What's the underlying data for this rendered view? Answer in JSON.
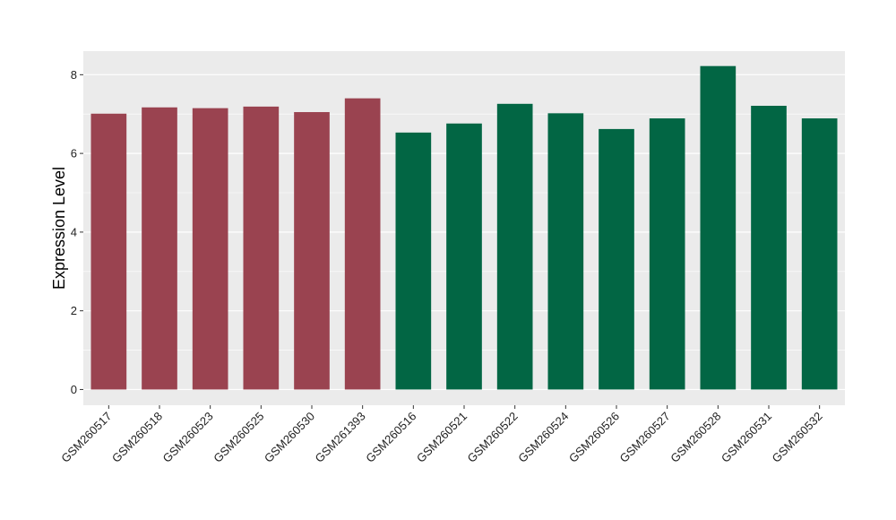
{
  "chart_data": {
    "type": "bar",
    "ylabel": "Expression Level",
    "xlabel": "",
    "title": "",
    "ylim": [
      -0.4,
      8.6
    ],
    "yticks": [
      0,
      2,
      4,
      6,
      8
    ],
    "grid": true,
    "legend": "none",
    "colors": {
      "group_a": "#9a4350",
      "group_b": "#026644",
      "panel": "#ebebeb",
      "gridline": "#ffffff"
    },
    "categories": [
      "GSM260517",
      "GSM260518",
      "GSM260523",
      "GSM260525",
      "GSM260530",
      "GSM261393",
      "GSM260516",
      "GSM260521",
      "GSM260522",
      "GSM260524",
      "GSM260526",
      "GSM260527",
      "GSM260528",
      "GSM260531",
      "GSM260532"
    ],
    "values": [
      7.01,
      7.17,
      7.15,
      7.19,
      7.05,
      7.4,
      6.53,
      6.76,
      7.26,
      7.02,
      6.62,
      6.89,
      8.22,
      7.21,
      6.89
    ],
    "groups": [
      "a",
      "a",
      "a",
      "a",
      "a",
      "a",
      "b",
      "b",
      "b",
      "b",
      "b",
      "b",
      "b",
      "b",
      "b"
    ]
  }
}
